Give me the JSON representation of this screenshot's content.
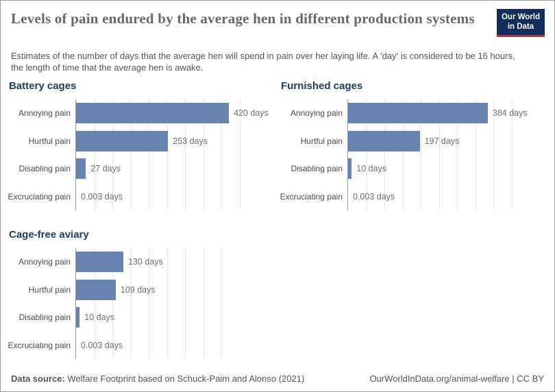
{
  "header": {
    "title": "Levels of pain endured by the average hen in different production systems",
    "subtitle": "Estimates of the number of days that the average hen will spend in pain over her laying life. A 'day' is considered to be 16 hours, the length of time that the average hen is awake.",
    "logo": {
      "line1": "Our World",
      "line2": "in Data"
    }
  },
  "chart_data": [
    {
      "type": "bar",
      "orientation": "horizontal",
      "title": "Battery cages",
      "categories": [
        "Annoying pain",
        "Hurtful pain",
        "Disabling pain",
        "Excruciating pain"
      ],
      "values": [
        420,
        253,
        27,
        0.003
      ],
      "value_labels": [
        "420 days",
        "253 days",
        "27 days",
        "0.003 days"
      ],
      "unit": "days",
      "xlim": [
        0,
        450
      ],
      "grid_step": 50,
      "grid": "dotted-vertical",
      "legend": "none"
    },
    {
      "type": "bar",
      "orientation": "horizontal",
      "title": "Furnished cages",
      "categories": [
        "Annoying pain",
        "Hurtful pain",
        "Disabling pain",
        "Excruciating pain"
      ],
      "values": [
        384,
        197,
        10,
        0.003
      ],
      "value_labels": [
        "384 days",
        "197 days",
        "10 days",
        "0.003 days"
      ],
      "unit": "days",
      "xlim": [
        0,
        450
      ],
      "grid_step": 50,
      "grid": "dotted-vertical",
      "legend": "none"
    },
    {
      "type": "bar",
      "orientation": "horizontal",
      "title": "Cage-free aviary",
      "categories": [
        "Annoying pain",
        "Hurtful pain",
        "Disabling pain",
        "Excruciating pain"
      ],
      "values": [
        130,
        109,
        10,
        0.003
      ],
      "value_labels": [
        "130 days",
        "109 days",
        "10 days",
        "0.003 days"
      ],
      "unit": "days",
      "xlim": [
        0,
        400
      ],
      "grid_step": 50,
      "grid": "dotted-vertical",
      "legend": "none"
    }
  ],
  "footer": {
    "source_label": "Data source:",
    "source_text": "Welfare Footprint based on Schuck-Paim and Alonso (2021)",
    "right_text": "OurWorldInData.org/animal-welfare | CC BY"
  },
  "colors": {
    "bar": "#6684af",
    "chart_title": "#1d3d63",
    "main_title": "#686868",
    "logo_bg": "#102d5c",
    "logo_accent": "#dc2426",
    "axis_line": "#999999",
    "gridline": "#d4d4d4"
  }
}
